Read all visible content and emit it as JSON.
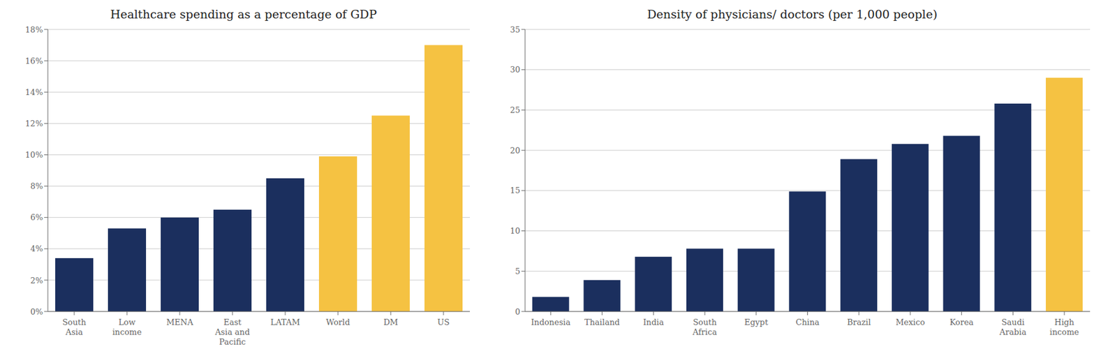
{
  "chart_data": [
    {
      "type": "bar",
      "title": "Healthcare spending as a percentage of GDP",
      "categories": [
        "South\nAsia",
        "Low\nincome",
        "MENA",
        "East\nAsia and\nPacific",
        "LATAM",
        "World",
        "DM",
        "US"
      ],
      "values": [
        0.034,
        0.053,
        0.06,
        0.065,
        0.085,
        0.099,
        0.125,
        0.17
      ],
      "colors": [
        "#1b2f5e",
        "#1b2f5e",
        "#1b2f5e",
        "#1b2f5e",
        "#1b2f5e",
        "#f5c242",
        "#f5c242",
        "#f5c242"
      ],
      "ylim": [
        0,
        0.18
      ],
      "yticks": [
        {
          "value": 0,
          "label": "0%"
        },
        {
          "value": 0.02,
          "label": "2%"
        },
        {
          "value": 0.04,
          "label": "4%"
        },
        {
          "value": 0.06,
          "label": "6%"
        },
        {
          "value": 0.08,
          "label": "8%"
        },
        {
          "value": 0.1,
          "label": "10%"
        },
        {
          "value": 0.12,
          "label": "12%"
        },
        {
          "value": 0.14,
          "label": "14%"
        },
        {
          "value": 0.16,
          "label": "16%"
        },
        {
          "value": 0.18,
          "label": "18%"
        }
      ],
      "grid": true
    },
    {
      "type": "bar",
      "title": "Density of physicians/ doctors (per 1,000 people)",
      "categories": [
        "Indonesia",
        "Thailand",
        "India",
        "South\nAfrica",
        "Egypt",
        "China",
        "Brazil",
        "Mexico",
        "Korea",
        "Saudi\nArabia",
        "High\nincome"
      ],
      "values": [
        1.8,
        3.9,
        6.8,
        7.8,
        7.8,
        14.9,
        18.9,
        20.8,
        21.8,
        25.8,
        29.0
      ],
      "colors": [
        "#1b2f5e",
        "#1b2f5e",
        "#1b2f5e",
        "#1b2f5e",
        "#1b2f5e",
        "#1b2f5e",
        "#1b2f5e",
        "#1b2f5e",
        "#1b2f5e",
        "#1b2f5e",
        "#f5c242"
      ],
      "ylim": [
        0,
        35
      ],
      "yticks": [
        0,
        5,
        10,
        15,
        20,
        25,
        30,
        35
      ],
      "grid": true
    }
  ]
}
